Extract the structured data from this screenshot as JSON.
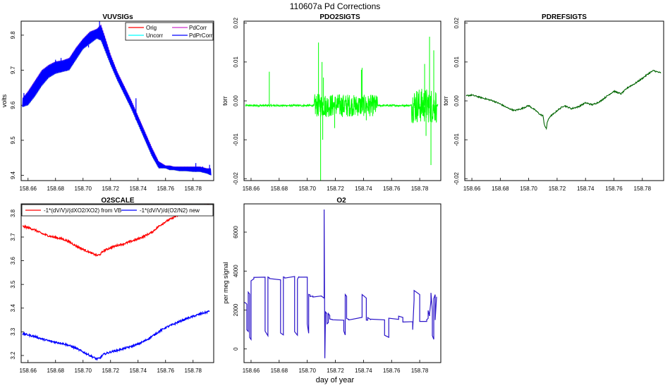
{
  "figure": {
    "title": "110607a   Pd Corrections",
    "xlabel": "day of year"
  },
  "colors": {
    "orig": "#ff0000",
    "uncorr": "#00ffff",
    "pdcorr": "#cc33cc",
    "pdprcorr": "#0000ff",
    "pdo2": "#00ff00",
    "pdref": "#006400",
    "o2scale_vb": "#ff0000",
    "o2scale_new": "#0000ff",
    "o2": "#2a14c8"
  },
  "chart_data": [
    {
      "id": "vuvsigs",
      "type": "line",
      "title": "VUVSIGs",
      "xlabel": "",
      "ylabel": "volts",
      "xlim": [
        158.655,
        158.795
      ],
      "ylim": [
        9.385,
        9.84
      ],
      "xticks": [
        158.66,
        158.68,
        158.7,
        158.72,
        158.74,
        158.76,
        158.78
      ],
      "yticks": [
        9.4,
        9.5,
        9.6,
        9.7,
        9.8
      ],
      "xtick_labels": [
        "158.66",
        "158.68",
        "158.70",
        "158.72",
        "158.74",
        "158.76",
        "158.78"
      ],
      "ytick_labels": [
        "9.4",
        "9.5",
        "9.6",
        "9.7",
        "9.8"
      ],
      "legend": [
        "Orig",
        "Uncorr",
        "PdCorr",
        "PdPrCorr"
      ],
      "legend_position": "top-right",
      "band": {
        "x": [
          158.656,
          158.66,
          158.665,
          158.67,
          158.675,
          158.68,
          158.685,
          158.69,
          158.695,
          158.7,
          158.705,
          158.71,
          158.713,
          158.716,
          158.72,
          158.725,
          158.73,
          158.735,
          158.74,
          158.745,
          158.75,
          158.755,
          158.76,
          158.763,
          158.766,
          158.77,
          158.775,
          158.78,
          158.785,
          158.79,
          158.793
        ],
        "lower": [
          9.595,
          9.6,
          9.625,
          9.655,
          9.678,
          9.69,
          9.695,
          9.7,
          9.73,
          9.76,
          9.775,
          9.79,
          9.785,
          9.755,
          9.715,
          9.67,
          9.63,
          9.59,
          9.545,
          9.5,
          9.455,
          9.42,
          9.42,
          9.415,
          9.415,
          9.412,
          9.412,
          9.41,
          9.41,
          9.405,
          9.4
        ],
        "upper": [
          9.62,
          9.64,
          9.67,
          9.7,
          9.715,
          9.725,
          9.728,
          9.735,
          9.765,
          9.79,
          9.81,
          9.818,
          9.83,
          9.795,
          9.745,
          9.695,
          9.655,
          9.615,
          9.57,
          9.525,
          9.48,
          9.44,
          9.428,
          9.428,
          9.425,
          9.425,
          9.425,
          9.425,
          9.425,
          9.42,
          9.42
        ]
      },
      "spikes": {
        "x": [
          158.657,
          158.68,
          158.684,
          158.688,
          158.704,
          158.712,
          158.712,
          158.7385,
          158.782,
          158.787,
          158.792
        ],
        "y": [
          9.635,
          9.73,
          9.735,
          9.73,
          9.765,
          9.84,
          9.805,
          9.62,
          9.435,
          9.425,
          9.43
        ]
      }
    },
    {
      "id": "pdo2sigts",
      "type": "line",
      "title": "PDO2SIGTS",
      "xlabel": "",
      "ylabel": "torr",
      "xlim": [
        158.655,
        158.795
      ],
      "ylim": [
        -0.0205,
        0.0205
      ],
      "xticks": [
        158.66,
        158.68,
        158.7,
        158.72,
        158.74,
        158.76,
        158.78
      ],
      "yticks": [
        -0.02,
        -0.01,
        0.0,
        0.01,
        0.02
      ],
      "xtick_labels": [
        "158.66",
        "158.68",
        "158.70",
        "158.72",
        "158.74",
        "158.76",
        "158.78"
      ],
      "ytick_labels": [
        "-0.02",
        "-0.01",
        "0.00",
        "0.01",
        "0.02"
      ],
      "baseline": -0.0012,
      "noise_segments": [
        {
          "x0": 158.705,
          "x1": 158.73,
          "amp": 0.003
        },
        {
          "x0": 158.73,
          "x1": 158.75,
          "amp": 0.0028
        },
        {
          "x0": 158.774,
          "x1": 158.792,
          "amp": 0.0045
        }
      ],
      "spikes": {
        "x": [
          158.673,
          158.708,
          158.7095,
          158.7105,
          158.711,
          158.7115,
          158.7195,
          158.7385,
          158.739,
          158.742,
          158.7835,
          158.7845,
          158.787,
          158.788,
          158.79
        ],
        "y": [
          0.0075,
          0.015,
          -0.0205,
          0.01,
          -0.01,
          0.006,
          -0.007,
          0.008,
          0.0085,
          -0.005,
          0.0095,
          -0.009,
          0.0165,
          -0.0165,
          0.013
        ]
      }
    },
    {
      "id": "pdrefsigts",
      "type": "line",
      "title": "PDREFSIGTS",
      "xlabel": "",
      "ylabel": "torr",
      "xlim": [
        158.655,
        158.795
      ],
      "ylim": [
        -0.0205,
        0.0205
      ],
      "xticks": [
        158.66,
        158.68,
        158.7,
        158.72,
        158.74,
        158.76,
        158.78
      ],
      "yticks": [
        -0.02,
        -0.01,
        0.0,
        0.01,
        0.02
      ],
      "xtick_labels": [
        "158.66",
        "158.68",
        "158.70",
        "158.72",
        "158.74",
        "158.76",
        "158.78"
      ],
      "ytick_labels": [
        "-0.02",
        "-0.01",
        "0.00",
        "0.01",
        "0.02"
      ],
      "x": [
        158.656,
        158.66,
        158.665,
        158.67,
        158.675,
        158.68,
        158.685,
        158.69,
        158.695,
        158.7,
        158.705,
        158.708,
        158.71,
        158.711,
        158.712,
        158.7125,
        158.713,
        158.715,
        158.718,
        158.72,
        158.725,
        158.73,
        158.735,
        158.74,
        158.745,
        158.75,
        158.755,
        158.76,
        158.765,
        158.77,
        158.775,
        158.78,
        158.785,
        158.788,
        158.79,
        158.793
      ],
      "y": [
        0.0013,
        0.0015,
        0.001,
        0.0005,
        0.0,
        -0.0008,
        -0.0018,
        -0.0025,
        -0.002,
        -0.0012,
        -0.0025,
        -0.0035,
        -0.0038,
        -0.006,
        -0.007,
        -0.0072,
        -0.0055,
        -0.004,
        -0.0032,
        -0.0025,
        -0.0012,
        -0.002,
        -0.0015,
        -0.0005,
        -0.001,
        -0.0002,
        0.0012,
        0.0025,
        0.0018,
        0.0035,
        0.0045,
        0.0058,
        0.0072,
        0.0078,
        0.0075,
        0.0072
      ]
    },
    {
      "id": "o2scale",
      "type": "line",
      "title": "O2SCALE",
      "xlabel": "",
      "ylabel": "",
      "xlim": [
        158.655,
        158.795
      ],
      "ylim": [
        3.17,
        3.84
      ],
      "xticks": [
        158.66,
        158.68,
        158.7,
        158.72,
        158.74,
        158.76,
        158.78
      ],
      "yticks": [
        3.2,
        3.3,
        3.4,
        3.5,
        3.6,
        3.7,
        3.8
      ],
      "xtick_labels": [
        "158.66",
        "158.68",
        "158.70",
        "158.72",
        "158.74",
        "158.76",
        "158.78"
      ],
      "ytick_labels": [
        "3.2",
        "3.3",
        "3.4",
        "3.5",
        "3.6",
        "3.7",
        "3.8"
      ],
      "legend": [
        "-1*(dV/V)/(dXO2/XO2) from VB",
        "-1*(dV/V)/d(O2/N2) new"
      ],
      "legend_position": "top",
      "series": [
        {
          "name": "-1*(dV/V)/(dXO2/XO2) from VB",
          "x": [
            158.656,
            158.66,
            158.665,
            158.67,
            158.675,
            158.68,
            158.685,
            158.69,
            158.695,
            158.7,
            158.705,
            158.71,
            158.712,
            158.715,
            158.72,
            158.725,
            158.73,
            158.735,
            158.74,
            158.745,
            158.75,
            158.755,
            158.76,
            158.765,
            158.77,
            158.775,
            158.78,
            158.785,
            158.79,
            158.792
          ],
          "y": [
            3.745,
            3.74,
            3.73,
            3.715,
            3.705,
            3.698,
            3.692,
            3.68,
            3.662,
            3.648,
            3.635,
            3.622,
            3.625,
            3.642,
            3.655,
            3.665,
            3.672,
            3.682,
            3.692,
            3.705,
            3.72,
            3.745,
            3.765,
            3.78,
            3.795,
            3.81,
            3.82,
            3.83,
            3.835,
            3.838
          ]
        },
        {
          "name": "-1*(dV/V)/d(O2/N2) new",
          "x": [
            158.656,
            158.66,
            158.665,
            158.67,
            158.675,
            158.68,
            158.685,
            158.69,
            158.695,
            158.7,
            158.705,
            158.71,
            158.712,
            158.715,
            158.72,
            158.725,
            158.73,
            158.735,
            158.74,
            158.745,
            158.75,
            158.755,
            158.76,
            158.765,
            158.77,
            158.775,
            158.78,
            158.785,
            158.79,
            158.792
          ],
          "y": [
            3.292,
            3.287,
            3.28,
            3.27,
            3.262,
            3.256,
            3.251,
            3.242,
            3.23,
            3.215,
            3.2,
            3.185,
            3.188,
            3.205,
            3.215,
            3.222,
            3.23,
            3.238,
            3.248,
            3.262,
            3.28,
            3.3,
            3.318,
            3.33,
            3.343,
            3.355,
            3.365,
            3.375,
            3.383,
            3.388
          ]
        }
      ]
    },
    {
      "id": "o2",
      "type": "line",
      "title": "O2",
      "xlabel": "",
      "ylabel": "per meg signal",
      "xlim": [
        158.655,
        158.795
      ],
      "ylim": [
        -700,
        7450
      ],
      "xticks": [
        158.66,
        158.68,
        158.7,
        158.72,
        158.74,
        158.76,
        158.78
      ],
      "yticks": [
        0,
        2000,
        4000,
        6000
      ],
      "xtick_labels": [
        "158.66",
        "158.68",
        "158.70",
        "158.72",
        "158.74",
        "158.76",
        "158.78"
      ],
      "ytick_labels": [
        "0",
        "2000",
        "4000",
        "6000"
      ],
      "x": [
        158.655,
        158.656,
        158.657,
        158.657,
        158.658,
        158.658,
        158.659,
        158.659,
        158.66,
        158.66,
        158.662,
        158.662,
        158.67,
        158.67,
        158.672,
        158.672,
        158.673,
        158.673,
        158.681,
        158.681,
        158.683,
        158.683,
        158.684,
        158.684,
        158.691,
        158.691,
        158.693,
        158.693,
        158.694,
        158.694,
        158.7,
        158.7,
        158.701,
        158.701,
        158.702,
        158.702,
        158.704,
        158.704,
        158.71,
        158.71,
        158.712,
        158.712,
        158.7125,
        158.713,
        158.714,
        158.714,
        158.715,
        158.715,
        158.716,
        158.716,
        158.718,
        158.718,
        158.726,
        158.726,
        158.727,
        158.727,
        158.728,
        158.728,
        158.7295,
        158.7295,
        158.739,
        158.739,
        158.742,
        158.742,
        158.743,
        158.743,
        158.745,
        158.745,
        158.755,
        158.755,
        158.758,
        158.758,
        158.765,
        158.765,
        158.768,
        158.768,
        158.775,
        158.775,
        158.776,
        158.776,
        158.78,
        158.78,
        158.785,
        158.785,
        158.786,
        158.786,
        158.787,
        158.787,
        158.788,
        158.788,
        158.789,
        158.789,
        158.79,
        158.79,
        158.791,
        158.791,
        158.792
      ],
      "y": [
        2400,
        2350,
        2300,
        1000,
        900,
        2900,
        2800,
        600,
        500,
        3500,
        3600,
        3650,
        3700,
        900,
        700,
        3700,
        3650,
        3600,
        3550,
        800,
        700,
        3700,
        3650,
        3650,
        3700,
        900,
        700,
        3600,
        3700,
        3700,
        3700,
        1300,
        800,
        2800,
        2750,
        2700,
        2700,
        2650,
        2700,
        2700,
        2600,
        7150,
        -500,
        1900,
        1800,
        1300,
        1350,
        1800,
        1700,
        1550,
        1500,
        1500,
        1500,
        900,
        700,
        2800,
        2700,
        1550,
        1500,
        1500,
        1600,
        2800,
        2600,
        1500,
        1500,
        1600,
        1500,
        1550,
        1500,
        700,
        600,
        1600,
        1500,
        1700,
        1600,
        1400,
        1400,
        1000,
        2500,
        3000,
        2800,
        1400,
        1400,
        1500,
        1550,
        2000,
        1700,
        1800,
        2500,
        2900,
        2000,
        700,
        500,
        2600,
        2800,
        1500,
        2700
      ]
    }
  ]
}
